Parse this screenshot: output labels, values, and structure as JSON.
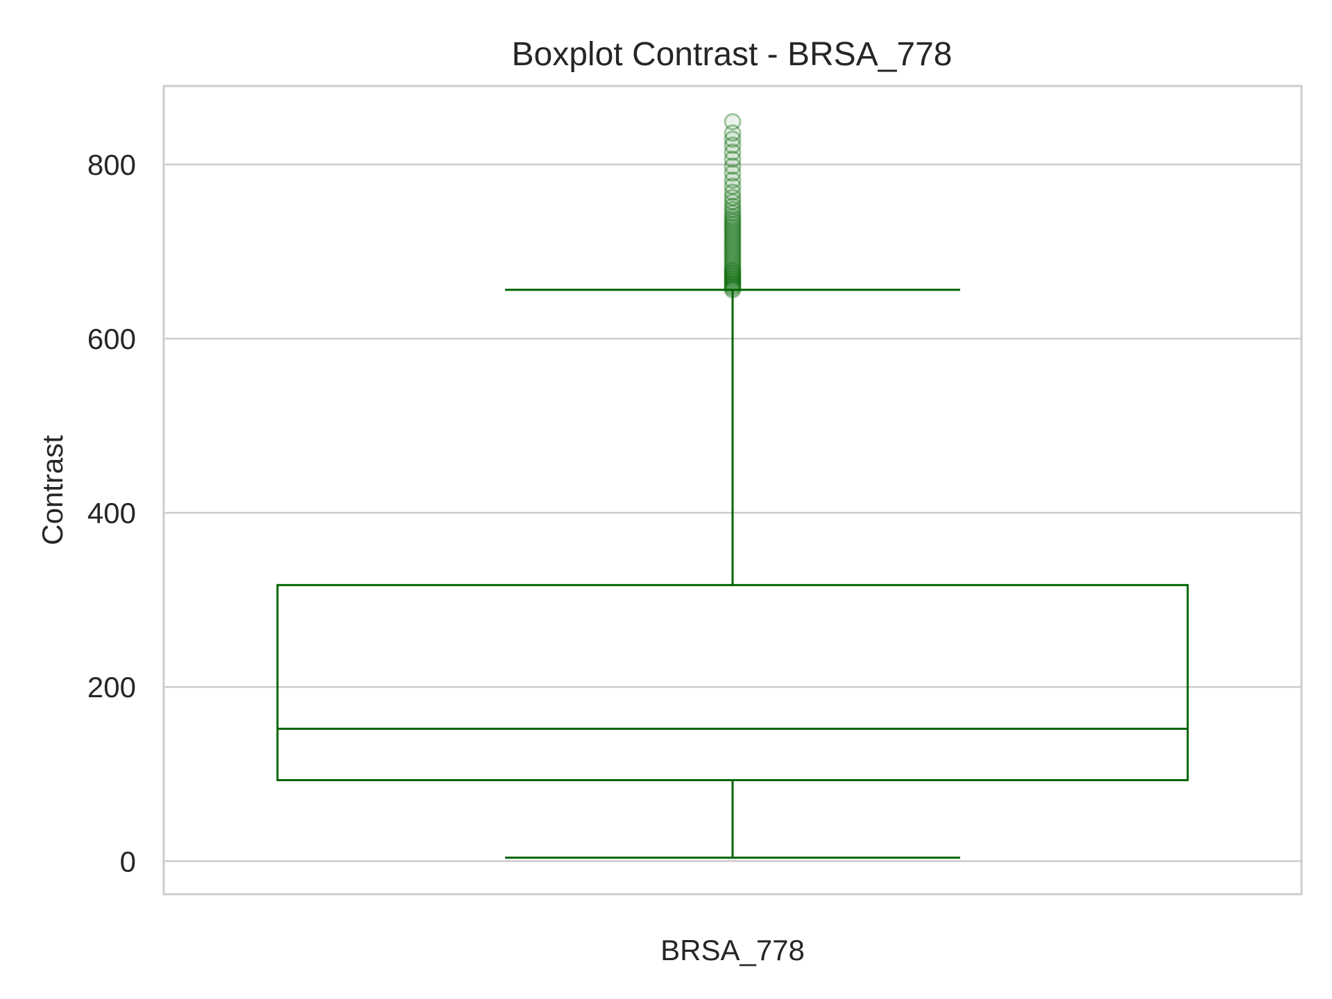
{
  "chart_data": {
    "type": "boxplot",
    "title": "Boxplot Contrast - BRSA_778",
    "xlabel": "",
    "ylabel": "Contrast",
    "categories": [
      "BRSA_778"
    ],
    "boxes": [
      {
        "category": "BRSA_778",
        "whisker_low": 4,
        "q1": 93,
        "median": 152,
        "q3": 317,
        "whisker_high": 656,
        "outliers": [
          656,
          658,
          660,
          662,
          664,
          666,
          668,
          670,
          672,
          674,
          676,
          678,
          680,
          683,
          686,
          689,
          692,
          695,
          698,
          701,
          704,
          707,
          710,
          713,
          716,
          719,
          722,
          725,
          728,
          731,
          734,
          737,
          740,
          744,
          748,
          752,
          757,
          762,
          768,
          775,
          782,
          790,
          798,
          806,
          814,
          822,
          829,
          836,
          849
        ]
      }
    ],
    "y_ticks": [
      0,
      200,
      400,
      600,
      800
    ],
    "ylim": [
      -38,
      890
    ],
    "grid": true,
    "legend": "none",
    "colors": {
      "box": "#006400",
      "grid": "#cccccc",
      "frame": "#cccccc",
      "text": "#262626"
    }
  }
}
